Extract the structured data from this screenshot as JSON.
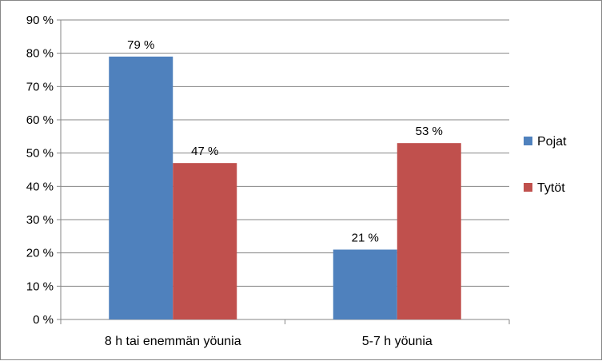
{
  "chart_data": {
    "type": "bar",
    "categories": [
      "8 h tai enemmän yöunia",
      "5-7 h yöunia"
    ],
    "series": [
      {
        "name": "Pojat",
        "values": [
          79,
          21
        ],
        "labels": [
          "79 %",
          "21 %"
        ],
        "color": "#4f81bd"
      },
      {
        "name": "Tytöt",
        "values": [
          47,
          53
        ],
        "labels": [
          "47 %",
          "53 %"
        ],
        "color": "#c0504d"
      }
    ],
    "y_tick_labels": [
      "0 %",
      "10 %",
      "20 %",
      "30 %",
      "40 %",
      "50 %",
      "60 %",
      "70 %",
      "80 %",
      "90 %"
    ],
    "ylim": [
      0,
      90
    ],
    "grid": true,
    "legend_position": "right"
  }
}
